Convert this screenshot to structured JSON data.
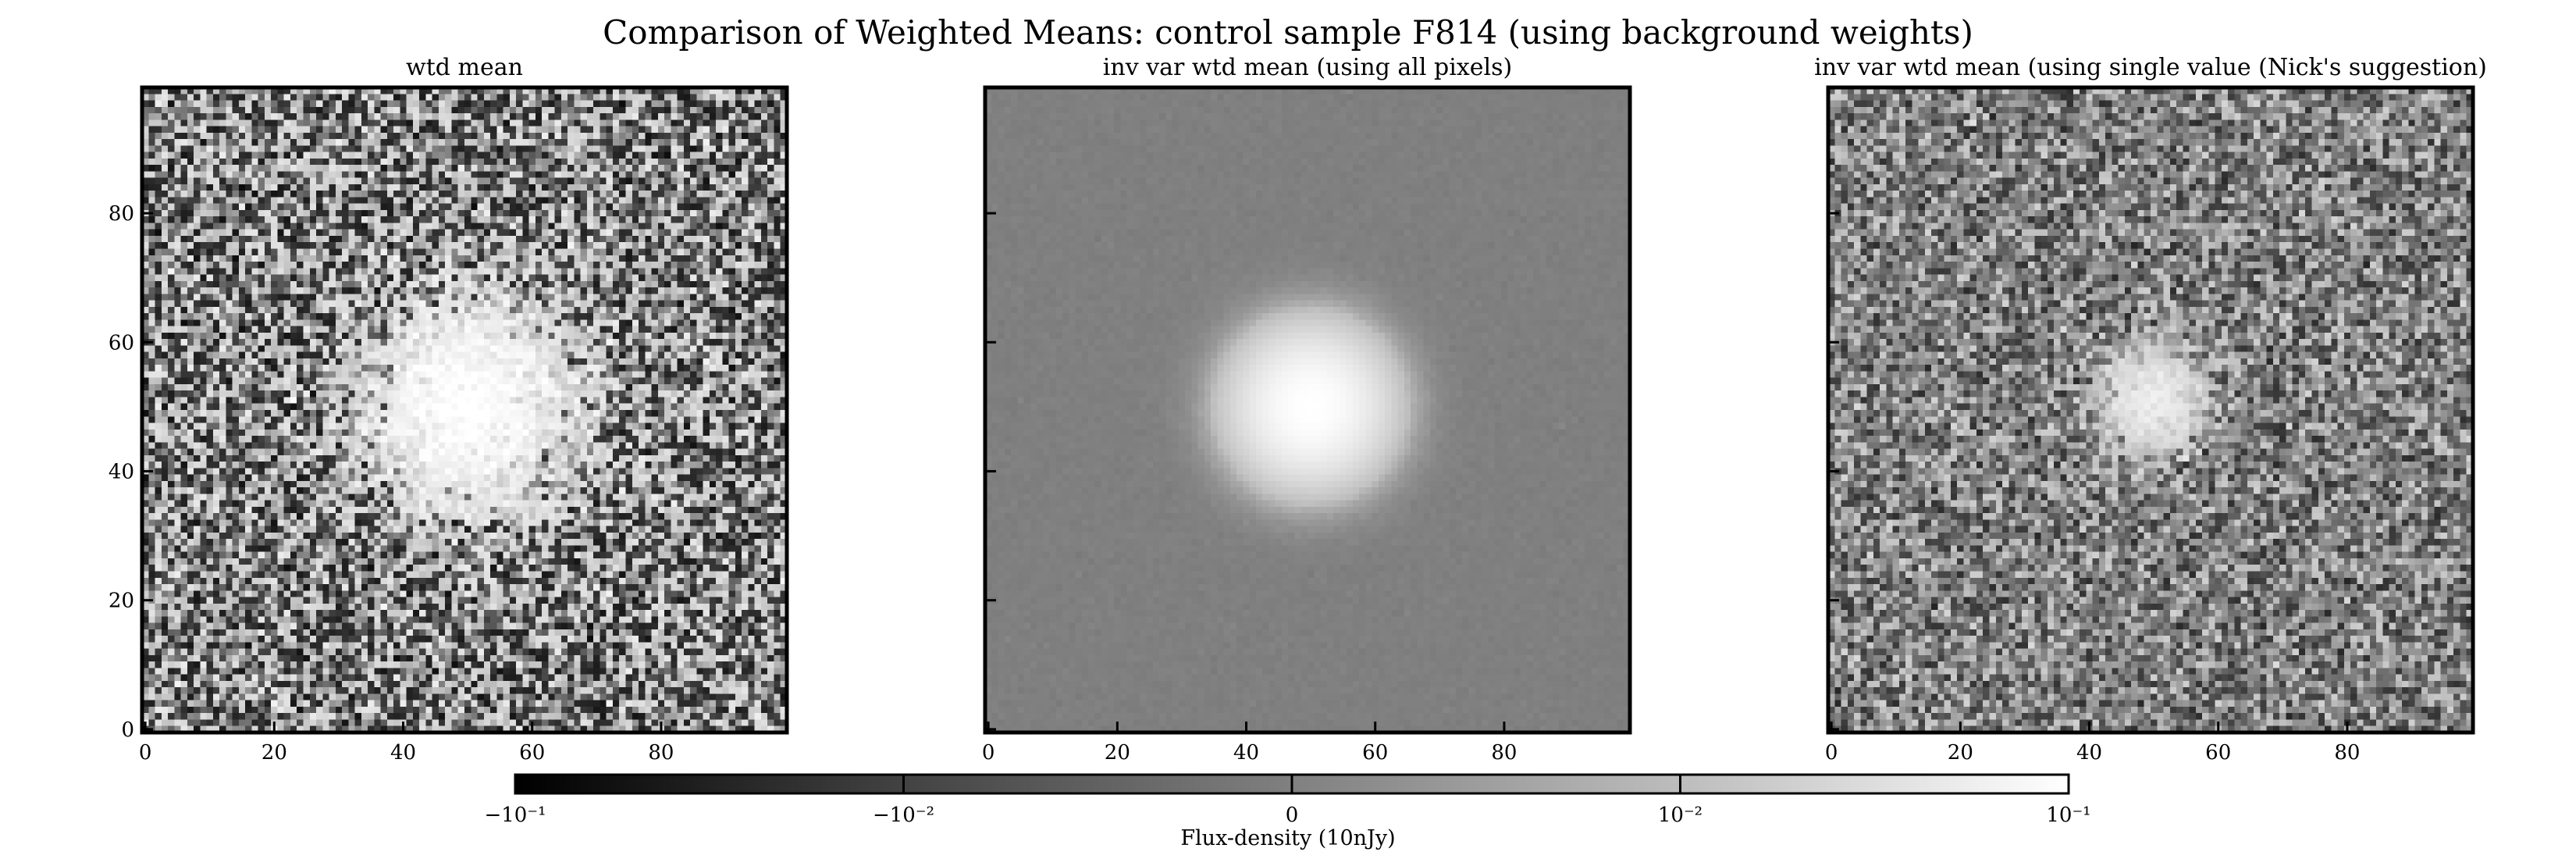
{
  "chart_data": {
    "type": "heatmap",
    "title": "Comparison of Weighted Means: control sample F814 (using background weights)",
    "panels": [
      {
        "title": "wtd mean",
        "xlim": [
          0,
          99
        ],
        "ylim": [
          0,
          99
        ],
        "xticks": [
          0,
          20,
          40,
          60,
          80
        ],
        "yticks": [
          0,
          20,
          40,
          60,
          80
        ],
        "show_xtick_labels": true,
        "show_ytick_labels": true,
        "source": {
          "x": 50,
          "y": 50,
          "sigma": 10,
          "peak": 0.1
        },
        "noise_sigma": 0.02,
        "colormap": "gray",
        "norm": "symlog"
      },
      {
        "title": "inv var wtd mean (using all pixels)",
        "xlim": [
          0,
          99
        ],
        "ylim": [
          0,
          99
        ],
        "xticks": [
          0,
          20,
          40,
          60,
          80
        ],
        "yticks": [
          0,
          20,
          40,
          60,
          80
        ],
        "show_xtick_labels": true,
        "show_ytick_labels": false,
        "source": {
          "x": 50,
          "y": 50,
          "sigma": 7,
          "peak": 0.1
        },
        "noise_sigma": 0.0003,
        "colormap": "gray",
        "norm": "symlog"
      },
      {
        "title": "inv var wtd mean (using single value (Nick's suggestion)",
        "xlim": [
          0,
          99
        ],
        "ylim": [
          0,
          99
        ],
        "xticks": [
          0,
          20,
          40,
          60,
          80
        ],
        "yticks": [
          0,
          20,
          40,
          60,
          80
        ],
        "show_xtick_labels": true,
        "show_ytick_labels": false,
        "source": {
          "x": 50,
          "y": 51,
          "sigma": 5,
          "peak": 0.05
        },
        "noise_sigma": 0.008,
        "colormap": "gray",
        "norm": "symlog"
      }
    ],
    "colorbar": {
      "label": "Flux-density (10nJy)",
      "range": [
        -0.1,
        0.1
      ],
      "ticks": [
        {
          "value": -0.1,
          "label": "−10⁻¹"
        },
        {
          "value": -0.01,
          "label": "−10⁻²"
        },
        {
          "value": 0,
          "label": "0"
        },
        {
          "value": 0.01,
          "label": "10⁻²"
        },
        {
          "value": 0.1,
          "label": "10⁻¹"
        }
      ]
    }
  }
}
